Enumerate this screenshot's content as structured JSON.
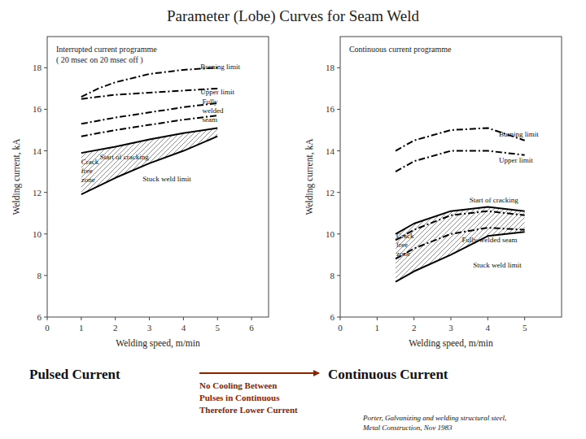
{
  "title": "Parameter (Lobe) Curves for Seam Weld",
  "annotations": [
    {
      "text": "Pulsed Current"
    },
    {
      "text": "No Cooling Between\nPulses in Continuous\nTherefore Lower Current",
      "color": "#8B2500"
    },
    {
      "text": "Continuous Current"
    },
    {
      "text": "Porter, Galvanizing and welding structural steel,\nMetal Construction, Nov 1983"
    }
  ],
  "chart_data": [
    {
      "type": "line",
      "title": "Interrupted current programme\n( 20 msec on 20 msec off )",
      "xlabel": "Welding speed, m/min",
      "ylabel": "Welding current, kA",
      "xlim": [
        0,
        6.5
      ],
      "ylim": [
        6,
        19.5
      ],
      "xticks": [
        0,
        1,
        2,
        3,
        4,
        5,
        6
      ],
      "yticks": [
        6,
        8,
        10,
        12,
        14,
        16,
        18
      ],
      "grid": false,
      "color": "#000000",
      "series": [
        {
          "x": [
            1.0,
            1.5,
            2.0,
            3.0,
            4.0,
            5.0
          ],
          "values": [
            16.6,
            17.0,
            17.3,
            17.7,
            17.9,
            18.0
          ],
          "line_style": "dashdot"
        },
        {
          "x": [
            1.0,
            1.5,
            2.0,
            3.0,
            4.0,
            5.0
          ],
          "values": [
            16.5,
            16.6,
            16.7,
            16.8,
            16.9,
            17.0
          ],
          "line_style": "dashdot"
        },
        {
          "x": [
            1.0,
            2.0,
            3.0,
            4.0,
            5.0
          ],
          "values": [
            15.3,
            15.6,
            15.85,
            16.1,
            16.3
          ],
          "line_style": "dashdot"
        },
        {
          "x": [
            1.0,
            2.0,
            3.0,
            4.0,
            5.0
          ],
          "values": [
            14.7,
            15.0,
            15.25,
            15.5,
            15.7
          ],
          "line_style": "dashdot"
        },
        {
          "x": [
            1.0,
            2.0,
            3.0,
            4.0,
            5.0
          ],
          "values": [
            13.9,
            14.2,
            14.55,
            14.85,
            15.1
          ],
          "line_style": "solid"
        },
        {
          "x": [
            1.0,
            2.0,
            3.0,
            4.0,
            5.0
          ],
          "values": [
            11.9,
            12.7,
            13.4,
            14.0,
            14.7
          ],
          "line_style": "solid"
        }
      ],
      "annotations": [
        {
          "text": "Burning limit",
          "x": 4.5,
          "y": 18.05
        },
        {
          "text": "Upper limit",
          "x": 4.5,
          "y": 16.85
        },
        {
          "text": "Fully\nwelded\nseam",
          "x": 4.55,
          "y": 15.95
        },
        {
          "text": "Start of cracking",
          "x": 1.55,
          "y": 13.7
        },
        {
          "text": "Crack\nfree\nzone",
          "x": 1.0,
          "y": 13.05
        },
        {
          "text": "Stuck weld limit",
          "x": 2.8,
          "y": 12.65
        }
      ]
    },
    {
      "type": "line",
      "title": "Continuous current programme",
      "xlabel": "Welding speed, m/min",
      "ylabel": "Welding current, kA",
      "xlim": [
        0,
        6
      ],
      "ylim": [
        6,
        19.5
      ],
      "xticks": [
        0,
        1,
        2,
        3,
        4,
        5
      ],
      "yticks": [
        6,
        8,
        10,
        12,
        14,
        16,
        18
      ],
      "grid": false,
      "color": "#000000",
      "series": [
        {
          "x": [
            1.5,
            2.0,
            3.0,
            4.0,
            5.0
          ],
          "values": [
            14.0,
            14.5,
            15.0,
            15.1,
            14.5
          ],
          "line_style": "dashdot"
        },
        {
          "x": [
            1.5,
            2.0,
            3.0,
            4.0,
            5.0
          ],
          "values": [
            13.0,
            13.5,
            14.0,
            14.0,
            13.8
          ],
          "line_style": "dashdot"
        },
        {
          "x": [
            1.5,
            2.0,
            3.0,
            4.0,
            5.0
          ],
          "values": [
            9.7,
            10.2,
            10.9,
            11.1,
            10.9
          ],
          "line_style": "dashdot"
        },
        {
          "x": [
            1.5,
            2.0,
            3.0,
            4.0,
            5.0
          ],
          "values": [
            8.8,
            9.3,
            10.0,
            10.3,
            10.2
          ],
          "line_style": "dashdot"
        },
        {
          "x": [
            1.5,
            2.0,
            3.0,
            4.0,
            5.0
          ],
          "values": [
            10.0,
            10.5,
            11.1,
            11.3,
            11.1
          ],
          "line_style": "solid"
        },
        {
          "x": [
            1.5,
            2.0,
            3.0,
            4.0,
            5.0
          ],
          "values": [
            7.7,
            8.2,
            9.0,
            9.9,
            10.1
          ],
          "line_style": "solid"
        }
      ],
      "annotations": [
        {
          "text": "Burning limit",
          "x": 4.3,
          "y": 14.8
        },
        {
          "text": "Upper limit",
          "x": 4.3,
          "y": 13.55
        },
        {
          "text": "Start of cracking",
          "x": 3.5,
          "y": 11.65
        },
        {
          "text": "Crack\nfree\nzone",
          "x": 1.52,
          "y": 9.5
        },
        {
          "text": "Fully welded seam",
          "x": 3.3,
          "y": 9.7
        },
        {
          "text": "Stuck weld limit",
          "x": 3.6,
          "y": 8.5
        }
      ]
    }
  ]
}
